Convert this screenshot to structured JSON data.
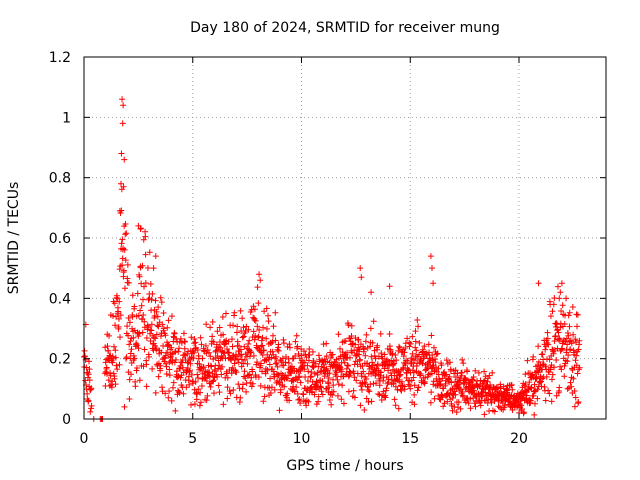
{
  "chart_data": {
    "type": "scatter",
    "title": "Day 180 of 2024, SRMTID for receiver mung",
    "xlabel": "GPS time / hours",
    "ylabel": "SRMTID / TECUs",
    "xlim": [
      0,
      24
    ],
    "ylim": [
      0,
      1.2
    ],
    "xticks": [
      0,
      5,
      10,
      15,
      20
    ],
    "xtick_labels": [
      "0",
      "5",
      "10",
      "15",
      "20"
    ],
    "yticks": [
      0,
      0.2,
      0.4,
      0.6,
      0.8,
      1.0,
      1.2
    ],
    "ytick_labels": [
      "0",
      "0.2",
      "0.4",
      "0.6",
      "0.8",
      "1",
      "1.2"
    ],
    "grid": true,
    "marker": "+",
    "color": "#ff0000",
    "series": [
      {
        "name": "SRMTID",
        "profile_hours": [
          0.0,
          0.5,
          0.8,
          1.0,
          1.3,
          1.6,
          1.8,
          2.0,
          2.3,
          2.6,
          2.9,
          3.2,
          3.6,
          4.0,
          4.5,
          5.0,
          5.5,
          6.0,
          6.5,
          7.0,
          7.5,
          8.0,
          8.5,
          9.0,
          9.5,
          10.0,
          10.5,
          11.0,
          11.5,
          12.0,
          12.5,
          13.0,
          13.5,
          14.0,
          14.5,
          15.0,
          15.5,
          16.0,
          16.5,
          17.0,
          17.5,
          18.0,
          18.5,
          19.0,
          19.5,
          20.0,
          20.5,
          21.0,
          21.5,
          22.0,
          22.5,
          22.8
        ],
        "profile_median": [
          0.18,
          0.0,
          0.0,
          0.2,
          0.22,
          0.3,
          0.55,
          0.3,
          0.25,
          0.4,
          0.35,
          0.25,
          0.22,
          0.2,
          0.17,
          0.16,
          0.17,
          0.2,
          0.2,
          0.2,
          0.22,
          0.25,
          0.2,
          0.15,
          0.15,
          0.16,
          0.15,
          0.14,
          0.15,
          0.18,
          0.2,
          0.17,
          0.16,
          0.16,
          0.15,
          0.17,
          0.18,
          0.17,
          0.12,
          0.1,
          0.11,
          0.1,
          0.09,
          0.08,
          0.07,
          0.06,
          0.1,
          0.15,
          0.25,
          0.25,
          0.18,
          0.2
        ],
        "spikes": [
          {
            "x": 1.75,
            "y": 1.06
          },
          {
            "x": 1.8,
            "y": 1.04
          },
          {
            "x": 1.78,
            "y": 0.98
          },
          {
            "x": 1.72,
            "y": 0.88
          },
          {
            "x": 1.85,
            "y": 0.86
          },
          {
            "x": 1.7,
            "y": 0.78
          },
          {
            "x": 1.82,
            "y": 0.77
          },
          {
            "x": 1.65,
            "y": 0.69
          },
          {
            "x": 2.5,
            "y": 0.64
          },
          {
            "x": 2.6,
            "y": 0.63
          },
          {
            "x": 3.3,
            "y": 0.54
          },
          {
            "x": 3.2,
            "y": 0.5
          },
          {
            "x": 8.05,
            "y": 0.48
          },
          {
            "x": 8.1,
            "y": 0.46
          },
          {
            "x": 12.7,
            "y": 0.5
          },
          {
            "x": 12.75,
            "y": 0.47
          },
          {
            "x": 13.2,
            "y": 0.42
          },
          {
            "x": 14.05,
            "y": 0.44
          },
          {
            "x": 15.95,
            "y": 0.54
          },
          {
            "x": 16.0,
            "y": 0.5
          },
          {
            "x": 16.05,
            "y": 0.45
          },
          {
            "x": 20.9,
            "y": 0.45
          },
          {
            "x": 21.9,
            "y": 0.42
          },
          {
            "x": 21.85,
            "y": 0.4
          },
          {
            "x": 0.45,
            "y": 0.0
          },
          {
            "x": 0.75,
            "y": 0.0
          },
          {
            "x": 0.8,
            "y": 0.0
          },
          {
            "x": 0.85,
            "y": 0.0
          }
        ]
      }
    ]
  }
}
